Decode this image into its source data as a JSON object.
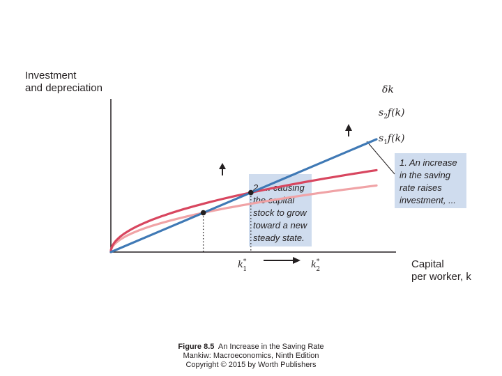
{
  "chart_data": {
    "type": "line",
    "title": "",
    "ylabel_lines": [
      "Investment",
      "and depreciation"
    ],
    "xlabel_lines": [
      "Capital",
      "per worker, k"
    ],
    "xlim": [
      0,
      10
    ],
    "ylim": [
      0,
      10
    ],
    "grid": false,
    "series": [
      {
        "name": "δk",
        "role": "depreciation",
        "color": "#3f79b5",
        "slope": 0.675
      },
      {
        "name": "s2f(k)",
        "base": "s",
        "sub": "2",
        "tail": "f(k)",
        "role": "saving_high",
        "color": "#d8465f",
        "coef": 1.55
      },
      {
        "name": "s1f(k)",
        "base": "s",
        "sub": "1",
        "tail": "f(k)",
        "role": "saving_low",
        "color": "#f0a3a6",
        "coef": 1.26
      }
    ],
    "steady_states": [
      {
        "label": "k*1",
        "base": "k",
        "sup": "*",
        "sub": "1",
        "k": 3.48
      },
      {
        "label": "k*2",
        "base": "k",
        "sup": "*",
        "sub": "2",
        "k": 5.27
      }
    ],
    "annotations": [
      {
        "id": "note1",
        "lines": [
          "1. An increase",
          "in the saving",
          "rate raises",
          "investment, ..."
        ]
      },
      {
        "id": "note2",
        "lines": [
          "2. ... causing",
          "the capital",
          "stock to grow",
          "toward a new",
          "steady state."
        ]
      }
    ]
  },
  "caption": {
    "figure_label": "Figure 8.5",
    "figure_title": "An Increase in the Saving Rate",
    "source": "Mankiw: Macroeconomics, Ninth Edition",
    "copyright": "Copyright © 2015 by Worth Publishers"
  },
  "colors": {
    "axis": "#231f20",
    "callout_fill": "#cfdcee",
    "arrow": "#231f20"
  }
}
